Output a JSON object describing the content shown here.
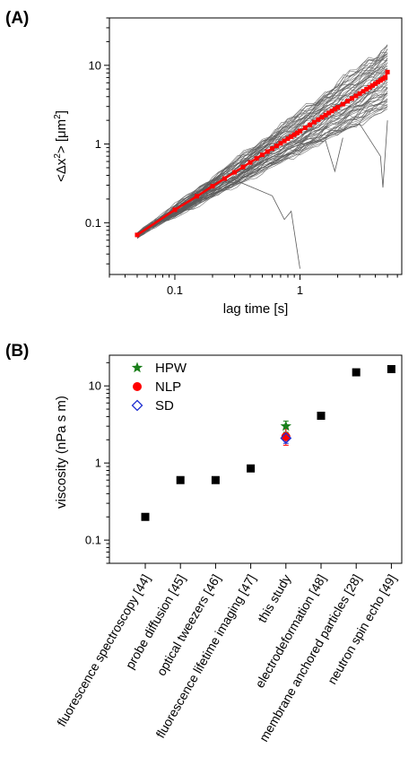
{
  "chart_data": [
    {
      "type": "line",
      "panel_label": "(A)",
      "xlabel": "lag time [s]",
      "ylabel_parts": [
        "<Δx",
        "2",
        "> [μm",
        "2",
        "]"
      ],
      "x_scale": "log",
      "y_scale": "log",
      "xlim": [
        0.03,
        6.5
      ],
      "ylim": [
        0.022,
        40
      ],
      "x_ticks": [
        0.1,
        1
      ],
      "x_tick_labels": [
        "0.1",
        "1"
      ],
      "y_ticks": [
        0.1,
        1,
        10
      ],
      "y_tick_labels": [
        "0.1",
        "1",
        "10"
      ],
      "trajectories": {
        "count": 60,
        "color": "#5a5a5a",
        "x_start": 0.05,
        "x_end": 5.0,
        "y_at_start": 0.07,
        "slope_range": [
          0.8,
          1.2
        ],
        "drop_outliers": [
          {
            "x": [
              0.05,
              0.3,
              0.6,
              0.75,
              0.85,
              1.0
            ],
            "y": [
              0.07,
              0.35,
              0.22,
              0.11,
              0.14,
              0.026
            ]
          },
          {
            "x": [
              0.05,
              0.5,
              1.0,
              1.6,
              1.9,
              2.2
            ],
            "y": [
              0.07,
              0.6,
              1.0,
              1.1,
              0.45,
              1.2
            ]
          },
          {
            "x": [
              0.05,
              1.0,
              3.0,
              4.4,
              4.6,
              5.0
            ],
            "y": [
              0.07,
              0.9,
              1.8,
              0.7,
              0.28,
              2.0
            ]
          }
        ]
      },
      "mean_series": {
        "color": "#ff0000",
        "x": [
          0.05,
          0.1,
          0.15,
          0.2,
          0.25,
          0.3,
          0.35,
          0.4,
          0.45,
          0.5,
          0.55,
          0.6,
          0.65,
          0.7,
          0.75,
          0.8,
          0.85,
          0.9,
          0.95,
          1.0,
          1.1,
          1.2,
          1.3,
          1.4,
          1.5,
          1.6,
          1.7,
          1.8,
          1.9,
          2.0,
          2.2,
          2.4,
          2.6,
          2.8,
          3.0,
          3.2,
          3.4,
          3.6,
          3.8,
          4.0,
          4.2,
          4.4,
          4.6,
          4.8,
          5.0
        ],
        "y": [
          0.07,
          0.146,
          0.217,
          0.291,
          0.364,
          0.437,
          0.51,
          0.583,
          0.656,
          0.729,
          0.802,
          0.875,
          0.948,
          1.021,
          1.094,
          1.167,
          1.24,
          1.313,
          1.386,
          1.459,
          1.605,
          1.751,
          1.897,
          2.043,
          2.189,
          2.335,
          2.481,
          2.627,
          2.773,
          2.919,
          3.211,
          3.503,
          3.795,
          4.087,
          4.379,
          4.671,
          4.963,
          5.255,
          5.547,
          5.839,
          6.131,
          6.423,
          6.715,
          7.007,
          8.2
        ]
      }
    },
    {
      "type": "scatter",
      "panel_label": "(B)",
      "ylabel": "viscosity (nPa s m)",
      "y_scale": "log",
      "ylim": [
        0.05,
        25
      ],
      "y_ticks": [
        0.1,
        1,
        10
      ],
      "y_tick_labels": [
        "0.1",
        "1",
        "10"
      ],
      "categories": [
        "fluorescence spectroscopy [44]",
        "probe diffusion [45]",
        "optical tweezers [46]",
        "fluorescence lifetime imaging [47]",
        "this study",
        "electrodeformation [48]",
        "membrane anchored particles [28]",
        "neutron spin echo [49]"
      ],
      "literature_values": [
        0.2,
        0.6,
        0.6,
        0.85,
        null,
        4.1,
        15.0,
        16.5
      ],
      "marker_color": "#000000",
      "series": [
        {
          "name": "HPW",
          "category": "this study",
          "value": 3.0,
          "err_low": 2.5,
          "err_high": 3.5,
          "marker": "star",
          "color": "#1a7f1a"
        },
        {
          "name": "NLP",
          "category": "this study",
          "value": 2.2,
          "err_low": 1.7,
          "err_high": 2.8,
          "marker": "circle",
          "color": "#ff0000"
        },
        {
          "name": "SD",
          "category": "this study",
          "value": 2.1,
          "err_low": 1.8,
          "err_high": 2.4,
          "marker": "diamond",
          "color": "#1f2fd1"
        }
      ],
      "legend_position": "top-left"
    }
  ]
}
